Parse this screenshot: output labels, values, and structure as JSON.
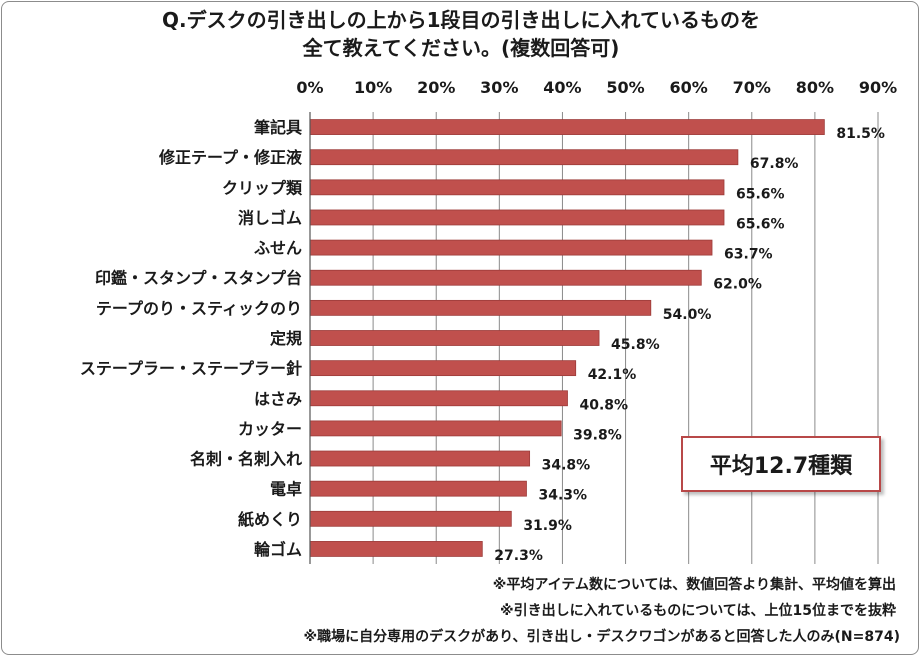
{
  "title": {
    "line1": "Q.デスクの引き出しの上から1段目の引き出しに入れているものを",
    "line2": "全て教えてください。(複数回答可)"
  },
  "average_box": {
    "text": "平均12.7種類"
  },
  "notes": [
    "※平均アイテム数については、数値回答より集計、平均値を算出",
    "※引き出しに入れているものについては、上位15位までを抜粋",
    "※職場に自分専用のデスクがあり、引き出し・デスクワゴンがあると回答した人のみ(N=874)"
  ],
  "chart_data": {
    "type": "bar",
    "orientation": "horizontal",
    "categories": [
      "筆記具",
      "修正テープ・修正液",
      "クリップ類",
      "消しゴム",
      "ふせん",
      "印鑑・スタンプ・スタンプ台",
      "テープのり・スティックのり",
      "定規",
      "ステープラー・ステープラー針",
      "はさみ",
      "カッター",
      "名刺・名刺入れ",
      "電卓",
      "紙めくり",
      "輪ゴム"
    ],
    "values": [
      81.5,
      67.8,
      65.6,
      65.6,
      63.7,
      62.0,
      54.0,
      45.8,
      42.1,
      40.8,
      39.8,
      34.8,
      34.3,
      31.9,
      27.3
    ],
    "value_labels": [
      "81.5%",
      "67.8%",
      "65.6%",
      "65.6%",
      "63.7%",
      "62.0%",
      "54.0%",
      "45.8%",
      "42.1%",
      "40.8%",
      "39.8%",
      "34.8%",
      "34.3%",
      "31.9%",
      "27.3%"
    ],
    "xticks": [
      "0%",
      "10%",
      "20%",
      "30%",
      "40%",
      "50%",
      "60%",
      "70%",
      "80%",
      "90%"
    ],
    "xlim": [
      0,
      90
    ],
    "axis_position": "top",
    "grid": true,
    "bar_color": "#c0504d",
    "bar_border_color": "#9c3b39"
  }
}
